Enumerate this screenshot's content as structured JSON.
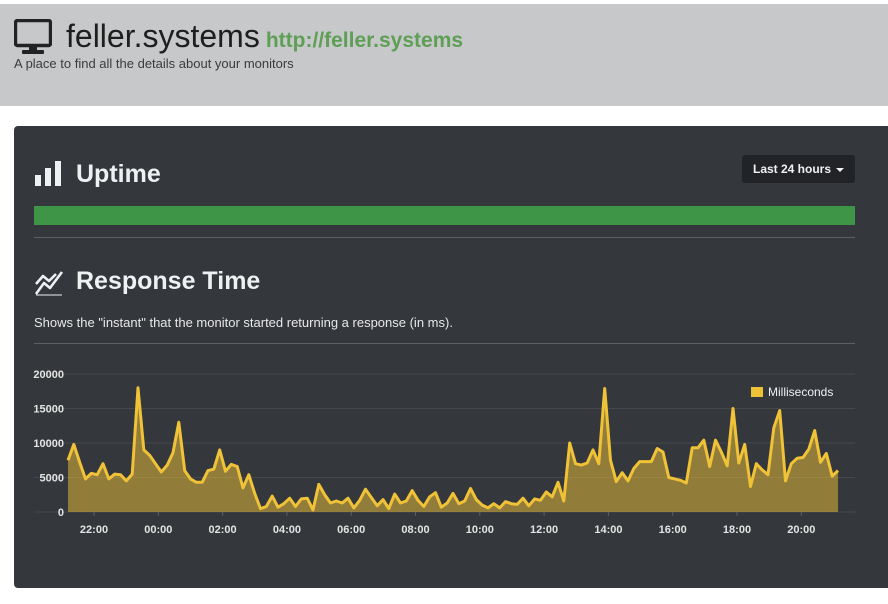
{
  "header": {
    "title": "feller.systems",
    "url": "http://feller.systems",
    "tagline": "A place to find all the details about your monitors",
    "icon": "monitor-icon"
  },
  "uptime": {
    "title": "Uptime",
    "icon": "bar-chart-icon",
    "range_button": "Last 24 hours",
    "bar_color": "#3f9547"
  },
  "response_time": {
    "title": "Response Time",
    "icon": "line-chart-icon",
    "description": "Shows the \"instant\" that the monitor started returning a response (in ms)."
  },
  "chart_data": {
    "type": "area",
    "legend_position": "top-right",
    "grid": true,
    "series": [
      {
        "name": "Milliseconds",
        "color": "#f0c237",
        "values": [
          7500,
          9800,
          7200,
          4800,
          5600,
          5400,
          7000,
          4800,
          5500,
          5400,
          4500,
          5500,
          18000,
          9000,
          8200,
          7000,
          5800,
          6800,
          8600,
          13000,
          6000,
          4800,
          4300,
          4300,
          6000,
          6200,
          9000,
          5900,
          6900,
          6600,
          3500,
          5400,
          2700,
          500,
          800,
          2300,
          700,
          1200,
          2000,
          800,
          1900,
          2000,
          300,
          4000,
          2500,
          1300,
          1600,
          1300,
          2000,
          600,
          1700,
          3300,
          2100,
          900,
          1800,
          500,
          2600,
          1300,
          1600,
          3100,
          1700,
          800,
          2200,
          2800,
          700,
          1300,
          2700,
          1200,
          1600,
          3400,
          1800,
          1000,
          600,
          1200,
          600,
          1500,
          1200,
          1100,
          2000,
          900,
          1900,
          1700,
          2900,
          2200,
          4300,
          1600,
          10000,
          7000,
          6800,
          7100,
          9000,
          7000,
          17900,
          7500,
          4400,
          5700,
          4500,
          6300,
          7300,
          7300,
          7300,
          9200,
          8700,
          5000,
          4800,
          4600,
          4200,
          9300,
          9300,
          10400,
          6600,
          10400,
          8700,
          6700,
          15000,
          7100,
          9800,
          3700,
          7000,
          6100,
          5400,
          12200,
          14700,
          4500,
          7000,
          7800,
          7900,
          9100,
          11800,
          7200,
          8500,
          5200,
          6000
        ]
      }
    ],
    "x_ticks": [
      "22:00",
      "00:00",
      "02:00",
      "04:00",
      "06:00",
      "08:00",
      "10:00",
      "12:00",
      "14:00",
      "16:00",
      "18:00",
      "20:00"
    ],
    "y_ticks": [
      "0",
      "5000",
      "10000",
      "15000",
      "20000"
    ],
    "ylim": [
      0,
      20000
    ]
  }
}
